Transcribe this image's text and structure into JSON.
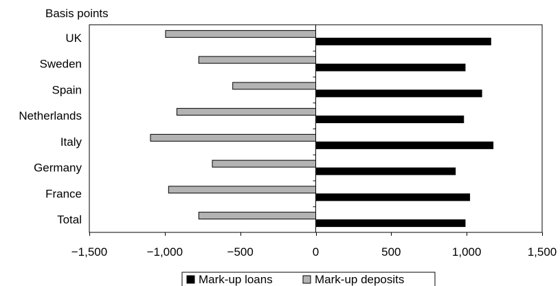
{
  "chart_data": {
    "type": "bar",
    "orientation": "horizontal",
    "unit_label": "Basis points",
    "categories": [
      "UK",
      "Sweden",
      "Spain",
      "Netherlands",
      "Italy",
      "Germany",
      "France",
      "Total"
    ],
    "series": [
      {
        "name": "Mark-up loans",
        "color": "#000000",
        "values": [
          1160,
          990,
          1100,
          980,
          1175,
          925,
          1020,
          990
        ]
      },
      {
        "name": "Mark-up deposits",
        "color": "#b3b3b3",
        "values": [
          -995,
          -775,
          -550,
          -920,
          -1095,
          -685,
          -975,
          -775
        ]
      }
    ],
    "xlim": [
      -1500,
      1500
    ],
    "xticks": [
      -1500,
      -1000,
      -500,
      0,
      500,
      1000,
      1500
    ],
    "xtick_labels": [
      "−1,500",
      "−1,000",
      "−500",
      "0",
      "500",
      "1,000",
      "1,500"
    ],
    "grid": false,
    "legend": "bottom"
  }
}
